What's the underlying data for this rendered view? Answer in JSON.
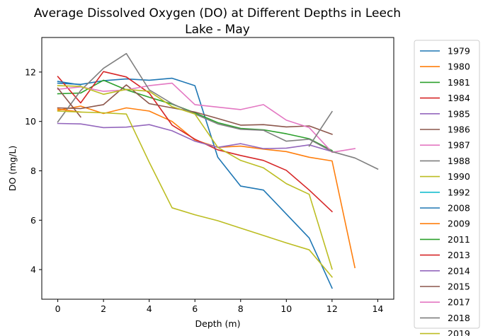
{
  "chart_data": {
    "type": "line",
    "title": "Average Dissolved Oxygen (DO) at Different Depths in Leech Lake - May",
    "title_lines": [
      "Average Dissolved Oxygen (DO) at Different Depths in Leech",
      "Lake - May"
    ],
    "xlabel": "Depth (m)",
    "ylabel": "DO (mg/L)",
    "xlim": [
      -0.7,
      14.7
    ],
    "ylim": [
      2.8,
      13.4
    ],
    "xticks": [
      0,
      2,
      4,
      6,
      8,
      10,
      12,
      14
    ],
    "yticks": [
      4,
      6,
      8,
      10,
      12
    ],
    "grid": false,
    "legend_position": "outside-right",
    "series": [
      {
        "name": "1979",
        "color": "#1f77b4",
        "x": [
          0,
          1,
          2,
          3,
          4,
          5,
          6,
          7,
          8,
          9,
          10,
          11,
          12
        ],
        "y": [
          11.55,
          11.5,
          11.65,
          11.72,
          11.67,
          11.75,
          11.45,
          8.55,
          7.38,
          7.22,
          6.25,
          5.28,
          3.25
        ]
      },
      {
        "name": "1980",
        "color": "#ff7f0e",
        "x": [
          0,
          1,
          2,
          3,
          4,
          5,
          6,
          7,
          8,
          9,
          10,
          11,
          12,
          13
        ],
        "y": [
          10.45,
          10.62,
          10.32,
          10.55,
          10.42,
          10.0,
          9.25,
          8.95,
          9.0,
          8.88,
          8.78,
          8.55,
          8.4,
          4.08
        ]
      },
      {
        "name": "1981",
        "color": "#2ca02c",
        "x": [
          0,
          1,
          2,
          3,
          4,
          5,
          6,
          7,
          8,
          9,
          10,
          11,
          12
        ],
        "y": [
          11.12,
          11.15,
          11.67,
          11.28,
          10.98,
          10.7,
          10.35,
          9.95,
          9.72,
          9.66,
          9.5,
          9.3,
          8.82
        ]
      },
      {
        "name": "1984",
        "color": "#d62728",
        "x": [
          0,
          1,
          2,
          3,
          4,
          5,
          6,
          7,
          8,
          9,
          10,
          11,
          12
        ],
        "y": [
          11.82,
          10.75,
          12.02,
          11.8,
          11.15,
          9.85,
          9.28,
          8.85,
          8.62,
          8.42,
          8.02,
          7.22,
          6.35
        ]
      },
      {
        "name": "1985",
        "color": "#9467bd",
        "x": [
          0,
          1,
          2,
          3,
          4,
          5,
          6,
          7,
          8,
          9,
          10,
          11,
          12
        ],
        "y": [
          9.92,
          9.9,
          9.75,
          9.77,
          9.87,
          9.62,
          9.2,
          8.95,
          9.1,
          8.9,
          8.92,
          9.05,
          8.78
        ]
      },
      {
        "name": "1986",
        "color": "#8c564b",
        "x": [
          0,
          1,
          2,
          3,
          4,
          5,
          6,
          7,
          8,
          9,
          10,
          11,
          12
        ],
        "y": [
          10.55,
          10.52,
          10.68,
          11.48,
          10.72,
          10.55,
          10.38,
          10.12,
          9.85,
          9.87,
          9.78,
          9.82,
          9.48
        ]
      },
      {
        "name": "1987",
        "color": "#e377c2",
        "x": [
          0,
          1,
          2,
          3,
          4,
          5,
          6,
          7,
          8,
          9,
          10,
          11,
          12,
          13
        ],
        "y": [
          11.3,
          11.4,
          11.22,
          11.28,
          11.45,
          11.55,
          10.68,
          10.58,
          10.48,
          10.68,
          10.05,
          9.75,
          8.75,
          8.9
        ]
      },
      {
        "name": "1988",
        "color": "#7f7f7f",
        "x": [
          0,
          1,
          2,
          3,
          4,
          5,
          6,
          7,
          8,
          9,
          10,
          11,
          12,
          13,
          14
        ],
        "y": [
          9.98,
          11.25,
          12.15,
          12.75,
          11.28,
          10.72,
          10.3,
          9.9,
          9.68,
          9.64,
          9.2,
          9.28,
          8.78,
          8.52,
          8.07
        ]
      },
      {
        "name": "1990",
        "color": "#bcbd22",
        "x": [
          0,
          1,
          2,
          3,
          4,
          5,
          6,
          7,
          8,
          9,
          10,
          11,
          12
        ],
        "y": [
          11.45,
          11.42,
          11.1,
          11.3,
          11.22,
          10.6,
          10.3,
          8.95,
          8.42,
          8.12,
          7.48,
          7.05,
          4.02
        ]
      },
      {
        "name": "1992",
        "color": "#17becf",
        "x": [],
        "y": []
      },
      {
        "name": "2008",
        "color": "#1f77b4",
        "x": [
          0,
          1
        ],
        "y": [
          11.62,
          11.48
        ]
      },
      {
        "name": "2009",
        "color": "#ff7f0e",
        "x": [
          0,
          1
        ],
        "y": [
          10.5,
          10.38
        ]
      },
      {
        "name": "2011",
        "color": "#2ca02c",
        "x": [],
        "y": []
      },
      {
        "name": "2013",
        "color": "#d62728",
        "x": [],
        "y": []
      },
      {
        "name": "2014",
        "color": "#9467bd",
        "x": [],
        "y": []
      },
      {
        "name": "2015",
        "color": "#8c564b",
        "x": [
          0,
          1
        ],
        "y": [
          11.35,
          10.18
        ]
      },
      {
        "name": "2017",
        "color": "#e377c2",
        "x": [],
        "y": []
      },
      {
        "name": "2018",
        "color": "#7f7f7f",
        "x": [
          11,
          12
        ],
        "y": [
          9.0,
          10.4
        ]
      },
      {
        "name": "2019",
        "color": "#bcbd22",
        "x": [
          0,
          1,
          2,
          3,
          4,
          5,
          6,
          7,
          8,
          9,
          10,
          11,
          12
        ],
        "y": [
          10.42,
          10.38,
          10.35,
          10.3,
          8.35,
          6.5,
          6.22,
          5.98,
          5.68,
          5.38,
          5.08,
          4.8,
          3.7
        ]
      }
    ]
  }
}
